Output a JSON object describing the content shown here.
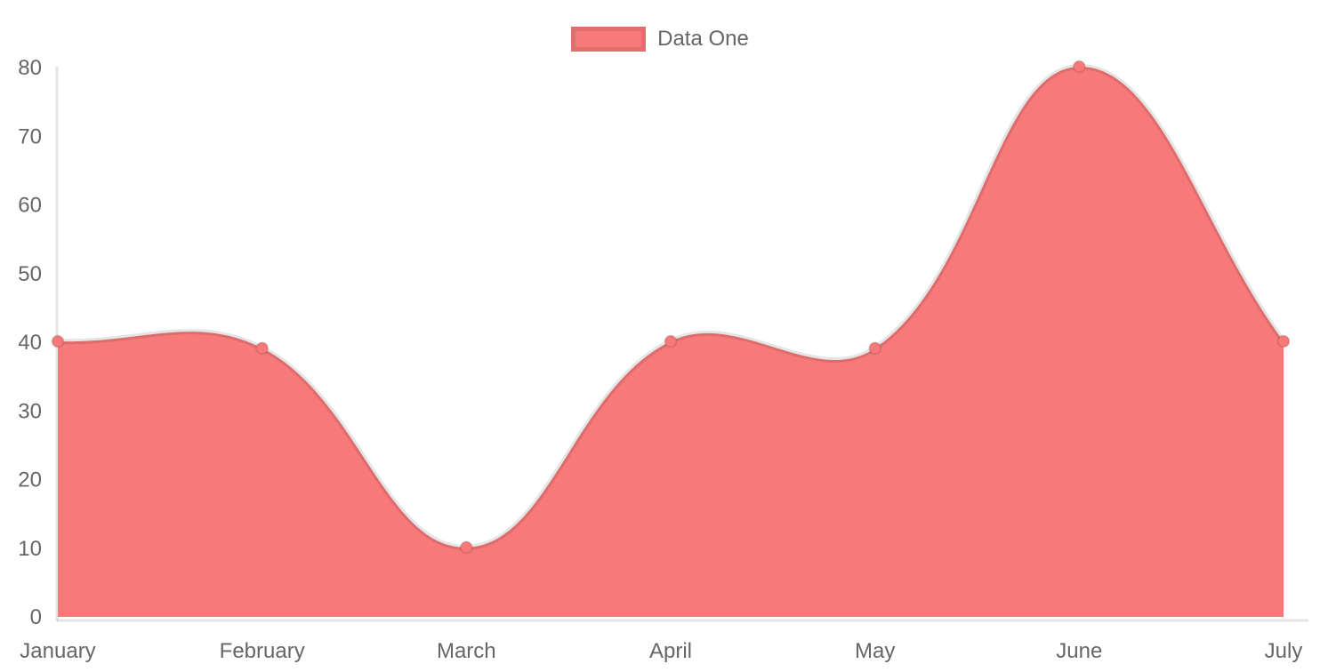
{
  "chart_data": {
    "type": "area",
    "title": "",
    "categories": [
      "January",
      "February",
      "March",
      "April",
      "May",
      "June",
      "July"
    ],
    "series": [
      {
        "name": "Data One",
        "values": [
          40,
          39,
          10,
          40,
          39,
          80,
          40
        ],
        "fill_color": "#f87979",
        "line_color": "rgba(0,0,0,0.1)",
        "point_fill_color": "#f87979",
        "point_border_color": "rgba(0,0,0,0.1)"
      }
    ],
    "xlabel": "",
    "ylabel": "",
    "ylim": [
      0,
      80
    ],
    "y_tick_step": 10,
    "y_tick_labels": [
      "0",
      "10",
      "20",
      "30",
      "40",
      "50",
      "60",
      "70",
      "80"
    ],
    "grid": false,
    "legend_position": "top",
    "curve": "smooth",
    "line_tension": 0.4,
    "axis_color": "rgba(0,0,0,0.1)",
    "label_color": "#666666"
  }
}
